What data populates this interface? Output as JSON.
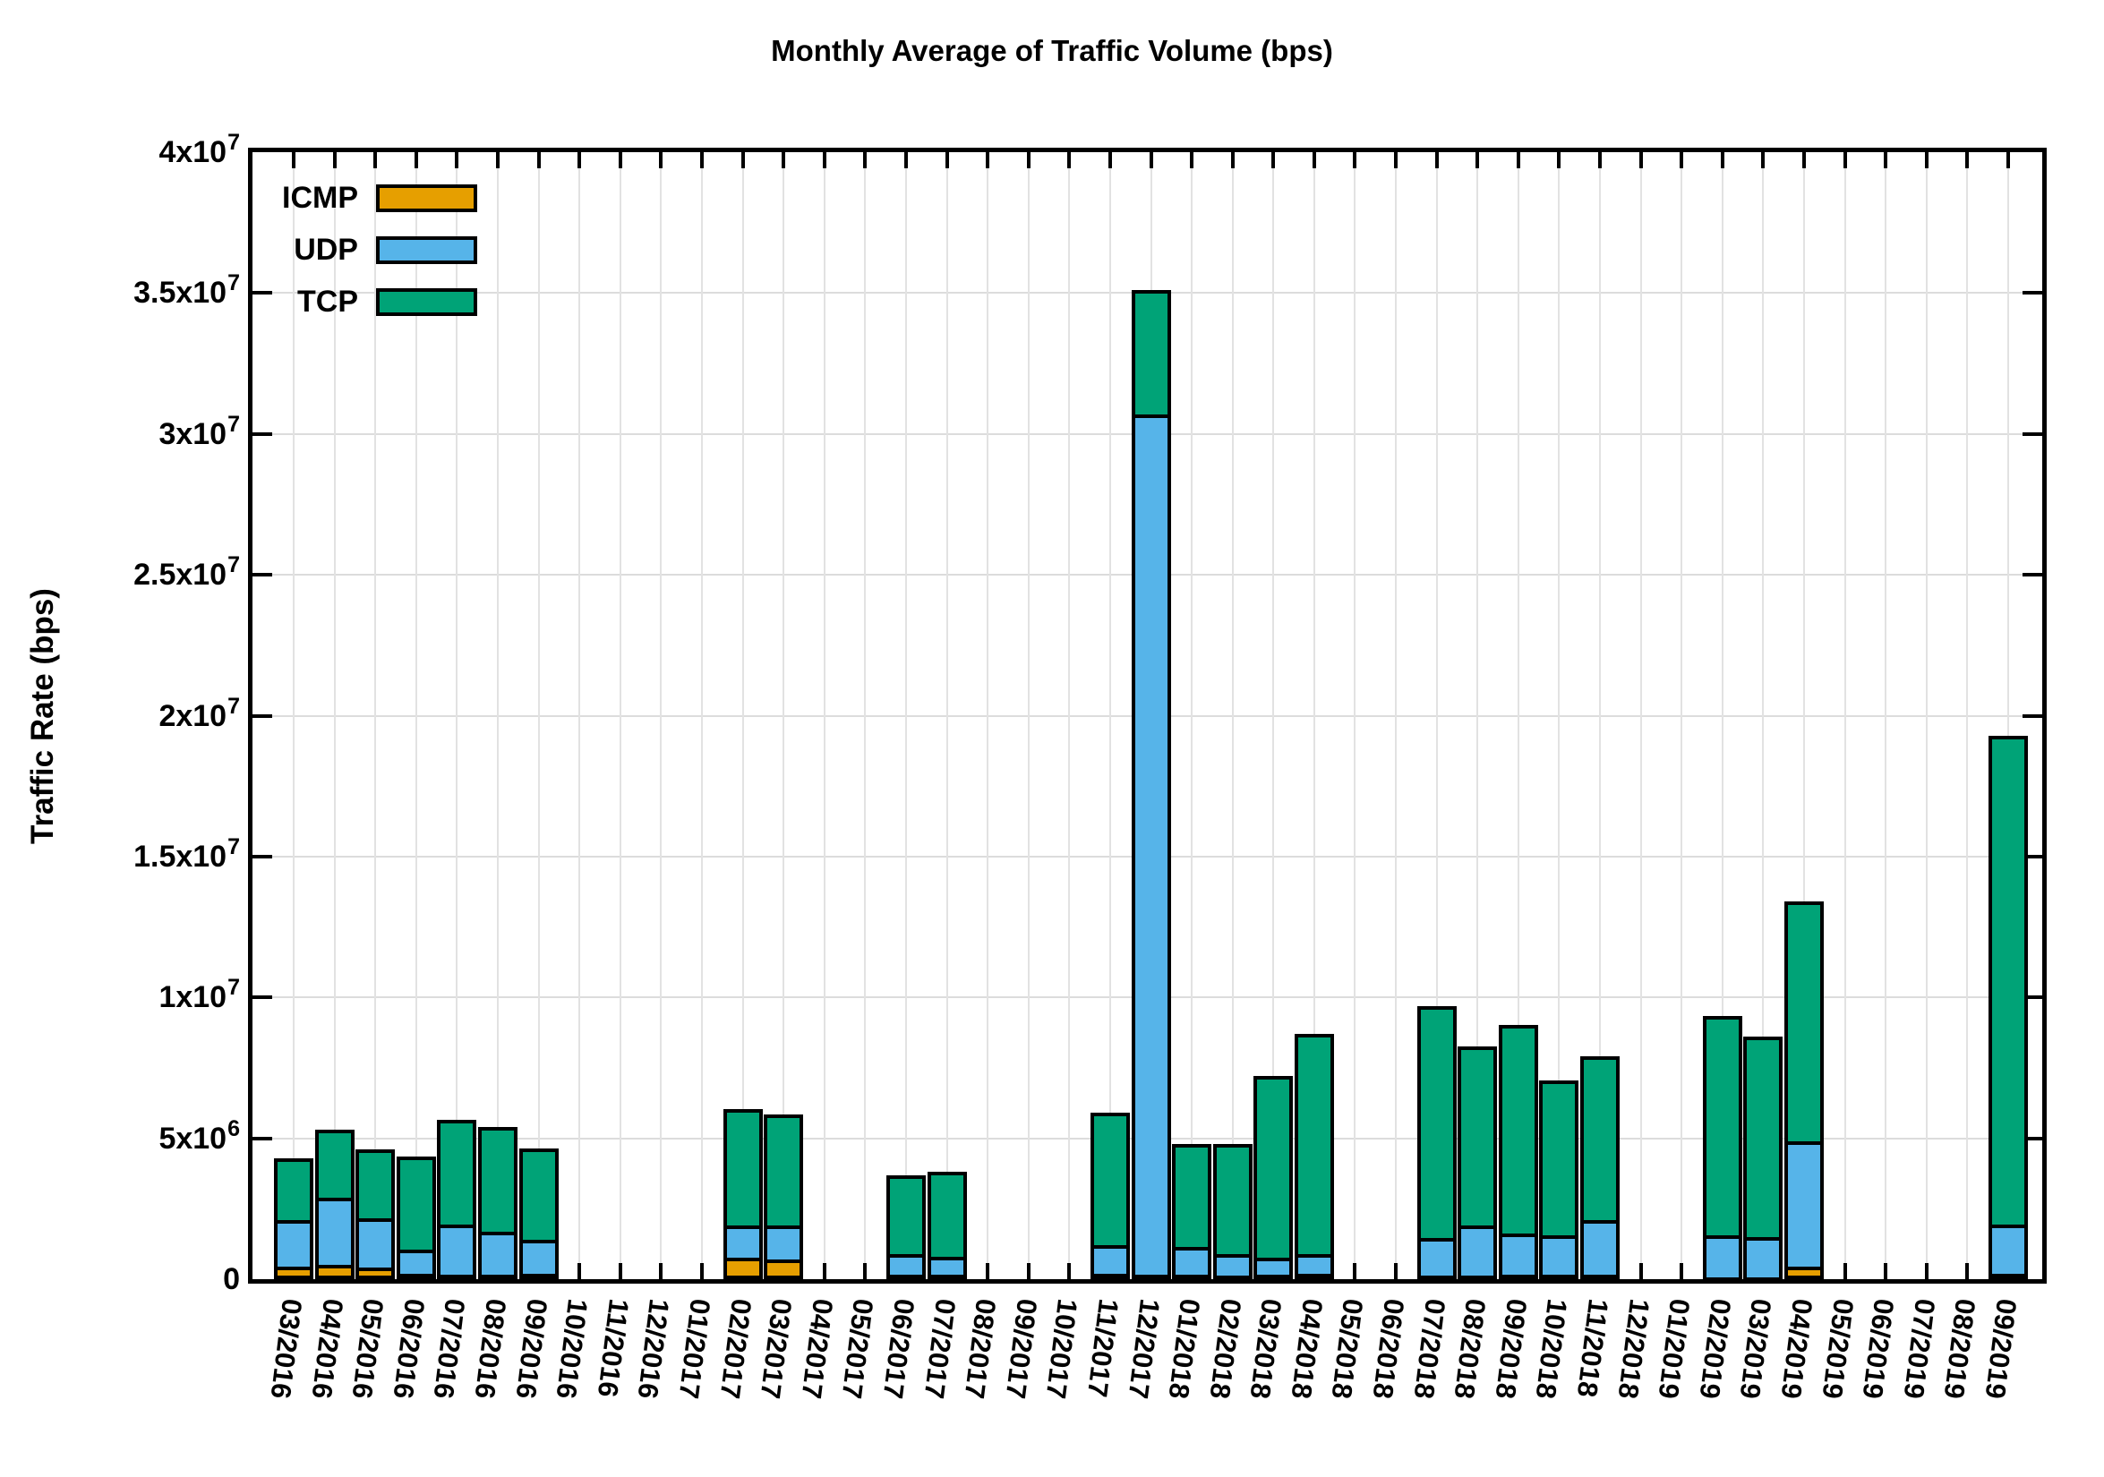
{
  "chart_data": {
    "type": "bar",
    "stacked": true,
    "title": "Monthly Average of Traffic Volume (bps)",
    "xlabel": "",
    "ylabel": "Traffic Rate (bps)",
    "ylim": [
      0,
      40000000
    ],
    "grid": true,
    "legend_position": "top-left",
    "background": "#ffffff",
    "axis_color": "#000000",
    "grid_color": "#dcdcdc",
    "yticks": [
      {
        "value": 0,
        "mantissa": "0",
        "exp": ""
      },
      {
        "value": 5000000,
        "mantissa": "5x10",
        "exp": "6"
      },
      {
        "value": 10000000,
        "mantissa": "1x10",
        "exp": "7"
      },
      {
        "value": 15000000,
        "mantissa": "1.5x10",
        "exp": "7"
      },
      {
        "value": 20000000,
        "mantissa": "2x10",
        "exp": "7"
      },
      {
        "value": 25000000,
        "mantissa": "2.5x10",
        "exp": "7"
      },
      {
        "value": 30000000,
        "mantissa": "3x10",
        "exp": "7"
      },
      {
        "value": 35000000,
        "mantissa": "3.5x10",
        "exp": "7"
      },
      {
        "value": 40000000,
        "mantissa": "4x10",
        "exp": "7"
      }
    ],
    "categories": [
      "03/2016",
      "04/2016",
      "05/2016",
      "06/2016",
      "07/2016",
      "08/2016",
      "09/2016",
      "10/2016",
      "11/2016",
      "12/2016",
      "01/2017",
      "02/2017",
      "03/2017",
      "04/2017",
      "05/2017",
      "06/2017",
      "07/2017",
      "08/2017",
      "09/2017",
      "10/2017",
      "11/2017",
      "12/2017",
      "01/2018",
      "02/2018",
      "03/2018",
      "04/2018",
      "05/2018",
      "06/2018",
      "07/2018",
      "08/2018",
      "09/2018",
      "10/2018",
      "11/2018",
      "12/2018",
      "01/2019",
      "02/2019",
      "03/2019",
      "04/2019",
      "05/2019",
      "06/2019",
      "07/2019",
      "08/2019",
      "09/2019"
    ],
    "series": [
      {
        "name": "ICMP",
        "color": "#E69F00",
        "values": [
          450000,
          500000,
          400000,
          200000,
          150000,
          150000,
          180000,
          0,
          0,
          0,
          0,
          750000,
          700000,
          0,
          0,
          150000,
          170000,
          0,
          0,
          0,
          200000,
          150000,
          150000,
          130000,
          150000,
          200000,
          0,
          0,
          130000,
          130000,
          150000,
          150000,
          150000,
          0,
          0,
          50000,
          50000,
          450000,
          0,
          0,
          0,
          0,
          180000
        ]
      },
      {
        "name": "UDP",
        "color": "#56B4E9",
        "values": [
          1650000,
          2400000,
          1750000,
          850000,
          1800000,
          1550000,
          1220000,
          0,
          0,
          0,
          0,
          1150000,
          1200000,
          0,
          0,
          750000,
          630000,
          0,
          0,
          0,
          1000000,
          30550000,
          1000000,
          770000,
          600000,
          700000,
          0,
          0,
          1320000,
          1770000,
          1470000,
          1400000,
          1950000,
          0,
          0,
          1500000,
          1450000,
          4450000,
          0,
          0,
          0,
          0,
          1770000
        ]
      },
      {
        "name": "TCP",
        "color": "#00A377",
        "values": [
          2200000,
          2400000,
          2450000,
          3300000,
          3700000,
          3700000,
          3250000,
          0,
          0,
          0,
          0,
          4150000,
          3950000,
          0,
          0,
          2800000,
          3000000,
          0,
          0,
          0,
          4700000,
          4400000,
          3650000,
          3900000,
          6450000,
          7800000,
          0,
          0,
          8250000,
          6350000,
          7400000,
          5500000,
          5800000,
          0,
          0,
          7800000,
          7100000,
          8500000,
          0,
          0,
          0,
          0,
          17350000
        ]
      }
    ]
  }
}
